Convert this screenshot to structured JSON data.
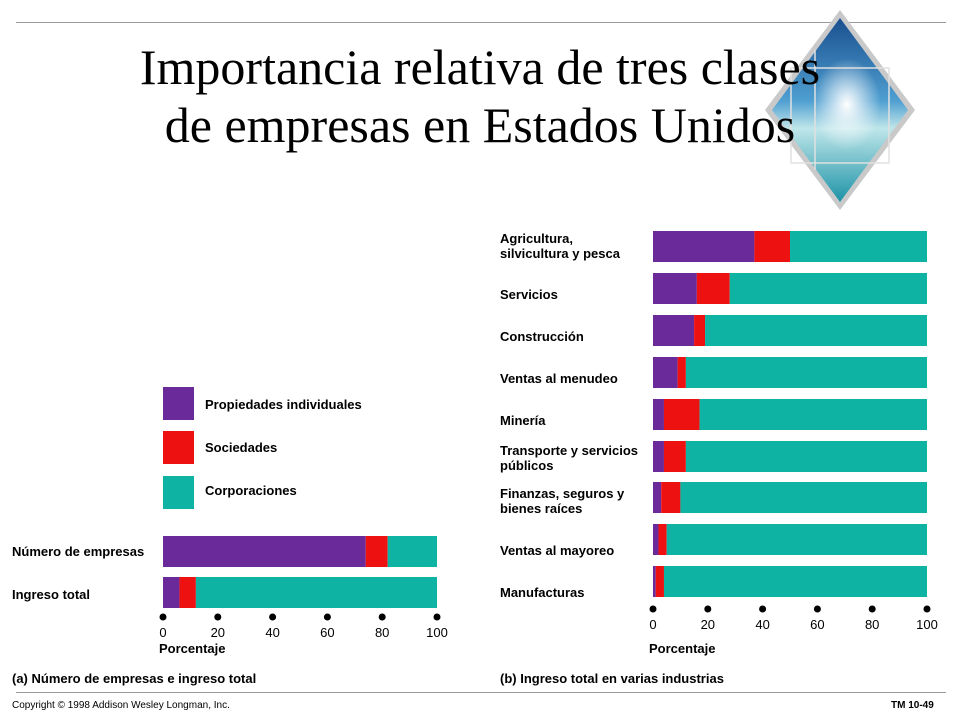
{
  "slide": {
    "title_line1": "Importancia relativa de tres clases",
    "title_line2": "de empresas en Estados Unidos",
    "copyright": "Copyright © 1998 Addison Wesley Longman, Inc.",
    "slide_number": "TM 10-49"
  },
  "colors": {
    "Propiedades individuales": "#6a2a9a",
    "Sociedades": "#ee1111",
    "Corporaciones": "#0fb3a3"
  },
  "legend": [
    "Propiedades individuales",
    "Sociedades",
    "Corporaciones"
  ],
  "chart_data": [
    {
      "type": "bar",
      "orientation": "horizontal",
      "stacked": true,
      "caption": "(a)  Número de empresas e ingreso total",
      "xlabel": "Porcentaje",
      "xlim": [
        0,
        100
      ],
      "xticks": [
        "0",
        "20",
        "40",
        "60",
        "80",
        "100"
      ],
      "categories": [
        "Número de empresas",
        "Ingreso total"
      ],
      "series": [
        {
          "name": "Propiedades individuales",
          "values": [
            74,
            6
          ]
        },
        {
          "name": "Sociedades",
          "values": [
            8,
            6
          ]
        },
        {
          "name": "Corporaciones",
          "values": [
            18,
            88
          ]
        }
      ]
    },
    {
      "type": "bar",
      "orientation": "horizontal",
      "stacked": true,
      "caption": "(b)  Ingreso total en varias industrias",
      "xlabel": "Porcentaje",
      "xlim": [
        0,
        100
      ],
      "xticks": [
        "0",
        "20",
        "40",
        "60",
        "80",
        "100"
      ],
      "categories": [
        [
          "Agricultura,",
          "silvicultura y pesca"
        ],
        [
          "Servicios"
        ],
        [
          "Construcción"
        ],
        [
          "Ventas al menudeo"
        ],
        [
          "Minería"
        ],
        [
          "Transporte y servicios",
          "públicos"
        ],
        [
          "Finanzas, seguros y",
          "bienes raíces"
        ],
        [
          "Ventas al mayoreo"
        ],
        [
          "Manufacturas"
        ]
      ],
      "series": [
        {
          "name": "Propiedades individuales",
          "values": [
            37,
            16,
            15,
            9,
            4,
            4,
            3,
            2,
            1
          ]
        },
        {
          "name": "Sociedades",
          "values": [
            13,
            12,
            4,
            3,
            13,
            8,
            7,
            3,
            3
          ]
        },
        {
          "name": "Corporaciones",
          "values": [
            50,
            72,
            81,
            88,
            83,
            88,
            90,
            95,
            96
          ]
        }
      ]
    }
  ]
}
